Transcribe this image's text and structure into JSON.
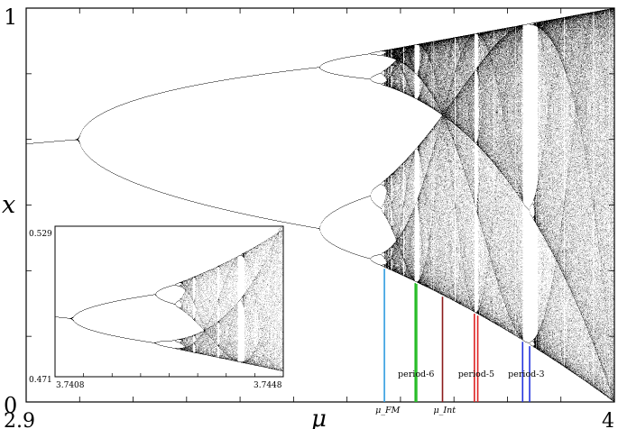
{
  "chart_data": {
    "type": "scatter",
    "title": "",
    "xlabel": "μ",
    "ylabel": "x",
    "xlim": [
      2.9,
      4
    ],
    "ylim": [
      0,
      1
    ],
    "x_tick_labels": [
      "2.9",
      "4"
    ],
    "y_tick_labels": [
      "0",
      "1"
    ],
    "grid": false,
    "map": "logistic",
    "markers": [
      {
        "label": "μ_FM",
        "x": 3.5699,
        "color": "#2e9be0"
      },
      {
        "label": "μ_Int",
        "x": 3.6786,
        "color": "#8b1a1a"
      },
      {
        "label": "period-6",
        "x": [
          3.6275,
          3.6303
        ],
        "color": "#22bb22"
      },
      {
        "label": "period-5",
        "x": [
          3.7382,
          3.7445
        ],
        "color": "#dd2222"
      },
      {
        "label": "period-3",
        "x": [
          3.8284,
          3.8415
        ],
        "color": "#2233dd"
      }
    ],
    "inset": {
      "xlim": [
        3.7408,
        3.7448
      ],
      "ylim": [
        0.471,
        0.529
      ],
      "x_tick_labels": [
        "3.7408",
        "3.7448"
      ],
      "y_tick_labels": [
        "0.471",
        "0.529"
      ]
    }
  }
}
